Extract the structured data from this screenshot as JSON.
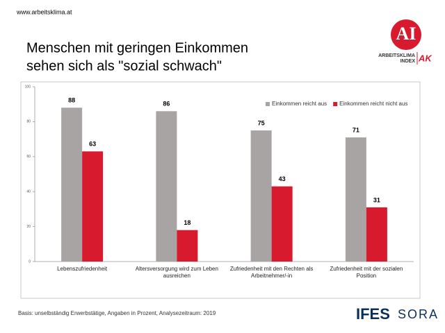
{
  "header": {
    "url": "www.arbeitsklima.at",
    "title_lines": [
      "Menschen mit geringen Einkommen",
      "sehen sich als \"sozial schwach\""
    ],
    "logo": {
      "mark": "AI",
      "line1": "ARBEITSKLIMA",
      "line2": "INDEX",
      "badge": "AK"
    }
  },
  "chart_data": {
    "type": "bar",
    "categories": [
      "Lebenszufriedenheit",
      "Altersversorgung wird zum Leben ausreichen",
      "Zufriedenheit mit den Rechten als Arbeitnehmer/-in",
      "Zufriedenheit mit der sozialen Position"
    ],
    "series": [
      {
        "name": "Einkommen reicht aus",
        "color": "#a9a4a4",
        "values": [
          88,
          86,
          75,
          71
        ]
      },
      {
        "name": "Einkommen reicht nicht aus",
        "color": "#d71a2e",
        "values": [
          63,
          18,
          43,
          31
        ]
      }
    ],
    "ylim": [
      0,
      100
    ],
    "yticks": [
      0,
      20,
      40,
      60,
      80,
      100
    ],
    "grid": false,
    "legend": "top-right"
  },
  "footer": {
    "basis": "Basis: unselbständig Erwerbstätige, Angaben in Prozent, Analysezeitraum: 2019",
    "logo1": "IFES",
    "logo2": "SORA"
  }
}
